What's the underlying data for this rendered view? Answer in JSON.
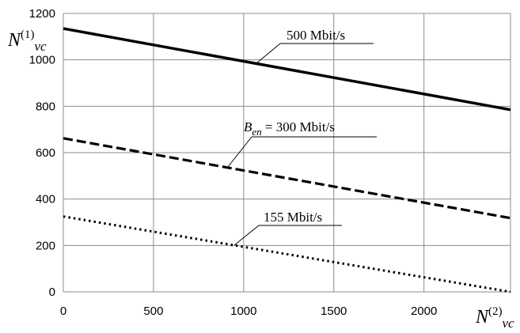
{
  "chart_data": {
    "type": "line",
    "x": [
      0,
      2480
    ],
    "xlim": [
      0,
      2480
    ],
    "ylim": [
      0,
      1200
    ],
    "xticks": [
      0,
      500,
      1000,
      1500,
      2000
    ],
    "yticks": [
      0,
      200,
      400,
      600,
      800,
      1000,
      1200
    ],
    "grid": true,
    "xlabel": {
      "base": "N",
      "sup": "(2)",
      "sub": "vc"
    },
    "ylabel": {
      "base": "N",
      "sup": "(1)",
      "sub": "vc"
    },
    "series": [
      {
        "name": "500 Mbit/s",
        "style": "solid",
        "points": [
          [
            0,
            1135
          ],
          [
            2480,
            785
          ]
        ]
      },
      {
        "name": "B_en = 300 Mbit/s",
        "style": "dashed",
        "points": [
          [
            0,
            662
          ],
          [
            2480,
            318
          ]
        ]
      },
      {
        "name": "155 Mbit/s",
        "style": "dotted",
        "points": [
          [
            0,
            325
          ],
          [
            2480,
            0
          ]
        ]
      }
    ],
    "annotations": [
      {
        "text": "500 Mbit/s"
      },
      {
        "text_b": "B",
        "text_sub": "en",
        "text_rest": "= 300 Mbit/s"
      },
      {
        "text": "155 Mbit/s"
      }
    ]
  }
}
